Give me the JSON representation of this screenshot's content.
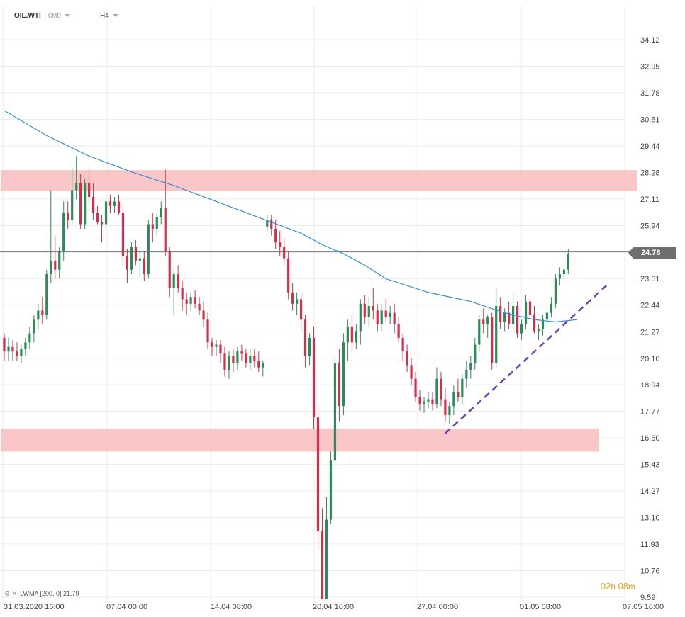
{
  "header": {
    "symbol": "OIL.WTI",
    "instrument_type": "CMD",
    "timeframe": "H4"
  },
  "indicator_legend": "LWMA [200, 0] 21.79",
  "countdown": {
    "hours": "02",
    "h_unit": "h",
    "minutes": "08",
    "m_unit": "m"
  },
  "current_price_label": "24.78",
  "colors": {
    "bull": "#2e8b57",
    "bear": "#d0304a",
    "zone": "#f7b7b7",
    "lwma": "#2f8fe0",
    "trendline": "#6a3fc0",
    "grid": "#ececec",
    "price_line": "#777777",
    "countdown": "#f0a020"
  },
  "chart_data": {
    "type": "candlestick",
    "instrument": "OIL.WTI",
    "timeframe": "H4",
    "y_axis_ticks": [
      "34.12",
      "32.95",
      "31.78",
      "30.61",
      "29.44",
      "28.28",
      "27.11",
      "25.94",
      "24.78",
      "23.61",
      "22.44",
      "21.27",
      "20.10",
      "18.94",
      "17.77",
      "16.60",
      "15.43",
      "14.27",
      "13.10",
      "11.93",
      "10.76",
      "9.59"
    ],
    "ylim": [
      9.5,
      35.1
    ],
    "x_axis_labels": [
      "31.03.2020  16:00",
      "07.04  00:00",
      "14.04  08:00",
      "20.04  16:00",
      "27.04  00:00",
      "01.05  08:00",
      "07.05  16:00"
    ],
    "current_price": 24.78,
    "lwma": {
      "name": "LWMA [200, 0]",
      "value": 21.79,
      "points": [
        [
          0,
          31.0
        ],
        [
          10,
          29.9
        ],
        [
          20,
          29.0
        ],
        [
          30,
          28.3
        ],
        [
          40,
          27.7
        ],
        [
          50,
          27.0
        ],
        [
          60,
          26.3
        ],
        [
          70,
          25.6
        ],
        [
          75,
          25.1
        ],
        [
          80,
          24.7
        ],
        [
          85,
          24.2
        ],
        [
          90,
          23.6
        ],
        [
          100,
          23.0
        ],
        [
          110,
          22.6
        ],
        [
          118,
          22.1
        ],
        [
          125,
          21.8
        ],
        [
          130,
          21.7
        ],
        [
          135,
          21.8
        ]
      ]
    },
    "zones": [
      {
        "low": 27.45,
        "high": 28.38
      },
      {
        "low": 16.0,
        "high": 17.0
      }
    ],
    "trendline": {
      "from": [
        104,
        16.8
      ],
      "to": [
        142,
        23.3
      ],
      "style": "dashed"
    },
    "candles": [
      [
        21.0,
        21.2,
        20.0,
        20.4
      ],
      [
        20.4,
        21.0,
        20.0,
        20.6
      ],
      [
        20.6,
        20.9,
        20.0,
        20.4
      ],
      [
        20.4,
        20.8,
        20.0,
        20.2
      ],
      [
        20.2,
        20.7,
        19.9,
        20.5
      ],
      [
        20.5,
        21.0,
        20.2,
        20.8
      ],
      [
        20.8,
        21.5,
        20.5,
        21.2
      ],
      [
        21.2,
        22.0,
        20.8,
        21.8
      ],
      [
        21.8,
        22.5,
        21.4,
        22.2
      ],
      [
        22.2,
        22.8,
        21.6,
        22.0
      ],
      [
        22.0,
        24.0,
        21.8,
        23.8
      ],
      [
        23.8,
        27.5,
        23.4,
        24.4
      ],
      [
        24.4,
        25.5,
        23.6,
        24.0
      ],
      [
        24.0,
        25.0,
        23.6,
        24.8
      ],
      [
        24.8,
        27.0,
        24.4,
        26.5
      ],
      [
        26.5,
        27.0,
        25.8,
        26.2
      ],
      [
        26.2,
        28.5,
        26.0,
        27.5
      ],
      [
        27.5,
        29.0,
        27.1,
        27.8
      ],
      [
        27.8,
        28.2,
        25.8,
        26.0
      ],
      [
        26.0,
        28.0,
        25.8,
        27.8
      ],
      [
        27.8,
        28.5,
        26.8,
        27.2
      ],
      [
        27.2,
        27.8,
        26.2,
        26.5
      ],
      [
        26.5,
        26.8,
        26.0,
        26.1
      ],
      [
        26.1,
        26.4,
        25.2,
        26.0
      ],
      [
        26.0,
        27.2,
        25.8,
        27.0
      ],
      [
        27.0,
        27.3,
        26.5,
        26.8
      ],
      [
        26.8,
        27.2,
        26.5,
        27.0
      ],
      [
        27.0,
        27.3,
        26.4,
        26.5
      ],
      [
        26.5,
        26.9,
        24.2,
        24.6
      ],
      [
        24.6,
        24.9,
        23.4,
        24.0
      ],
      [
        24.0,
        25.2,
        23.8,
        25.0
      ],
      [
        25.0,
        25.3,
        24.2,
        24.4
      ],
      [
        24.4,
        25.0,
        23.6,
        24.5
      ],
      [
        24.5,
        24.8,
        23.5,
        23.8
      ],
      [
        23.8,
        26.2,
        23.6,
        26.0
      ],
      [
        26.0,
        26.5,
        25.2,
        25.8
      ],
      [
        25.8,
        26.5,
        25.5,
        26.3
      ],
      [
        26.3,
        27.0,
        26.0,
        26.7
      ],
      [
        26.7,
        28.4,
        24.6,
        24.8
      ],
      [
        24.8,
        25.0,
        22.8,
        23.2
      ],
      [
        23.2,
        24.0,
        22.0,
        23.8
      ],
      [
        23.8,
        24.2,
        23.0,
        23.2
      ],
      [
        23.2,
        23.5,
        22.2,
        22.7
      ],
      [
        22.7,
        23.0,
        22.0,
        22.5
      ],
      [
        22.5,
        23.0,
        22.2,
        22.8
      ],
      [
        22.8,
        23.1,
        22.3,
        22.5
      ],
      [
        22.5,
        22.8,
        22.0,
        22.2
      ],
      [
        22.2,
        22.6,
        21.5,
        21.8
      ],
      [
        21.8,
        22.1,
        20.5,
        20.8
      ],
      [
        20.8,
        21.0,
        20.2,
        20.6
      ],
      [
        20.6,
        20.9,
        20.2,
        20.7
      ],
      [
        20.7,
        20.9,
        19.9,
        20.3
      ],
      [
        20.3,
        20.6,
        19.3,
        19.6
      ],
      [
        19.6,
        20.4,
        19.2,
        20.2
      ],
      [
        20.2,
        20.5,
        19.5,
        19.9
      ],
      [
        19.9,
        20.6,
        19.6,
        20.4
      ],
      [
        20.4,
        20.7,
        20.0,
        20.3
      ],
      [
        20.3,
        20.5,
        19.7,
        19.9
      ],
      [
        19.9,
        20.5,
        19.6,
        20.2
      ],
      [
        20.2,
        20.5,
        19.7,
        20.0
      ],
      [
        20.0,
        20.4,
        19.5,
        19.7
      ],
      [
        19.7,
        20.0,
        19.3,
        19.9
      ],
      [
        25.9,
        26.4,
        25.7,
        26.2
      ],
      [
        26.2,
        26.4,
        25.5,
        25.8
      ],
      [
        25.8,
        26.2,
        24.9,
        25.2
      ],
      [
        25.2,
        25.7,
        24.6,
        25.0
      ],
      [
        25.0,
        25.4,
        24.2,
        24.5
      ],
      [
        24.5,
        24.8,
        22.7,
        23.0
      ],
      [
        23.0,
        23.4,
        22.2,
        22.5
      ],
      [
        22.5,
        23.0,
        22.0,
        22.7
      ],
      [
        22.7,
        23.0,
        21.3,
        21.8
      ],
      [
        21.8,
        22.0,
        19.7,
        20.2
      ],
      [
        20.2,
        21.2,
        19.8,
        21.0
      ],
      [
        21.0,
        21.5,
        17.0,
        17.5
      ],
      [
        17.5,
        18.0,
        11.7,
        12.5
      ],
      [
        12.5,
        13.5,
        9.5,
        9.5
      ],
      [
        9.5,
        14.0,
        9.5,
        13.0
      ],
      [
        13.0,
        16.0,
        12.8,
        15.6
      ],
      [
        15.6,
        20.2,
        15.5,
        19.9
      ],
      [
        19.9,
        20.5,
        17.3,
        18.0
      ],
      [
        18.0,
        21.2,
        17.6,
        20.8
      ],
      [
        20.8,
        21.8,
        20.0,
        21.5
      ],
      [
        21.5,
        22.0,
        20.4,
        20.8
      ],
      [
        20.8,
        21.6,
        20.5,
        21.3
      ],
      [
        21.3,
        22.7,
        20.7,
        22.5
      ],
      [
        22.5,
        22.9,
        21.6,
        21.9
      ],
      [
        21.9,
        22.8,
        21.5,
        22.4
      ],
      [
        22.4,
        23.2,
        21.8,
        22.2
      ],
      [
        22.2,
        22.5,
        21.3,
        21.6
      ],
      [
        21.6,
        22.5,
        21.3,
        22.2
      ],
      [
        22.2,
        22.7,
        21.7,
        21.9
      ],
      [
        21.9,
        22.4,
        21.6,
        22.1
      ],
      [
        22.1,
        22.5,
        21.2,
        21.6
      ],
      [
        21.6,
        21.9,
        20.8,
        21.0
      ],
      [
        21.0,
        21.2,
        20.0,
        20.4
      ],
      [
        20.4,
        20.7,
        19.5,
        19.8
      ],
      [
        19.8,
        20.1,
        18.9,
        19.2
      ],
      [
        19.2,
        19.5,
        18.2,
        18.4
      ],
      [
        18.4,
        18.7,
        17.8,
        18.1
      ],
      [
        18.1,
        18.4,
        17.7,
        18.2
      ],
      [
        18.2,
        18.6,
        17.9,
        18.3
      ],
      [
        18.3,
        18.6,
        17.8,
        18.1
      ],
      [
        18.1,
        19.7,
        17.9,
        19.2
      ],
      [
        19.2,
        19.5,
        18.0,
        18.3
      ],
      [
        18.3,
        18.8,
        17.3,
        17.6
      ],
      [
        17.6,
        18.2,
        17.2,
        18.0
      ],
      [
        18.0,
        18.9,
        17.6,
        18.6
      ],
      [
        18.6,
        19.2,
        18.2,
        18.4
      ],
      [
        18.4,
        19.4,
        18.1,
        19.2
      ],
      [
        19.2,
        20.0,
        18.8,
        19.6
      ],
      [
        19.6,
        20.2,
        19.2,
        19.9
      ],
      [
        19.9,
        21.0,
        19.6,
        20.7
      ],
      [
        20.7,
        22.0,
        20.4,
        21.8
      ],
      [
        21.8,
        22.3,
        21.2,
        21.6
      ],
      [
        21.6,
        22.0,
        21.0,
        21.9
      ],
      [
        21.9,
        22.1,
        19.6,
        19.9
      ],
      [
        19.9,
        23.2,
        19.7,
        22.4
      ],
      [
        22.4,
        22.8,
        21.4,
        21.7
      ],
      [
        21.7,
        22.3,
        21.3,
        22.1
      ],
      [
        22.1,
        22.6,
        21.4,
        21.6
      ],
      [
        21.6,
        23.0,
        21.2,
        22.4
      ],
      [
        22.4,
        22.6,
        21.0,
        21.2
      ],
      [
        21.2,
        21.8,
        20.9,
        21.6
      ],
      [
        21.6,
        22.9,
        21.4,
        22.6
      ],
      [
        22.6,
        22.8,
        21.8,
        22.0
      ],
      [
        22.0,
        22.4,
        21.2,
        21.3
      ],
      [
        21.3,
        21.6,
        20.9,
        21.4
      ],
      [
        21.4,
        22.0,
        21.1,
        21.8
      ],
      [
        21.8,
        22.3,
        21.5,
        22.1
      ],
      [
        22.1,
        22.8,
        21.9,
        22.5
      ],
      [
        22.5,
        23.8,
        22.3,
        23.6
      ],
      [
        23.6,
        24.1,
        23.3,
        23.8
      ],
      [
        23.8,
        24.2,
        23.5,
        24.0
      ],
      [
        24.0,
        24.9,
        23.8,
        24.7
      ]
    ]
  }
}
